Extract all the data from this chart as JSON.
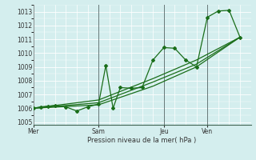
{
  "xlabel": "Pression niveau de la mer( hPa )",
  "bg_color": "#d4eeee",
  "line_color": "#1a6e1a",
  "grid_major_color": "#ffffff",
  "grid_minor_color": "#e8f8f8",
  "ylim": [
    1004.8,
    1013.5
  ],
  "yticks": [
    1005,
    1006,
    1007,
    1008,
    1009,
    1010,
    1011,
    1012,
    1013
  ],
  "day_labels": [
    "Mer",
    "Sam",
    "Jeu",
    "Ven"
  ],
  "day_positions": [
    0,
    36,
    72,
    96
  ],
  "xlim": [
    0,
    120
  ],
  "series1": [
    [
      0,
      1006.0
    ],
    [
      4,
      1006.1
    ],
    [
      8,
      1006.15
    ],
    [
      12,
      1006.2
    ],
    [
      18,
      1006.1
    ],
    [
      24,
      1005.8
    ],
    [
      30,
      1006.1
    ],
    [
      36,
      1006.3
    ],
    [
      40,
      1009.1
    ],
    [
      44,
      1006.0
    ],
    [
      48,
      1007.5
    ],
    [
      54,
      1007.45
    ],
    [
      60,
      1007.5
    ],
    [
      66,
      1009.5
    ],
    [
      72,
      1010.4
    ],
    [
      78,
      1010.35
    ],
    [
      84,
      1009.5
    ],
    [
      90,
      1009.0
    ],
    [
      96,
      1012.6
    ],
    [
      102,
      1013.05
    ],
    [
      108,
      1013.1
    ],
    [
      114,
      1011.15
    ]
  ],
  "series2": [
    [
      0,
      1006.0
    ],
    [
      36,
      1006.25
    ],
    [
      66,
      1007.6
    ],
    [
      90,
      1009.0
    ],
    [
      114,
      1011.15
    ]
  ],
  "series3": [
    [
      0,
      1006.0
    ],
    [
      36,
      1006.4
    ],
    [
      66,
      1007.9
    ],
    [
      90,
      1009.2
    ],
    [
      114,
      1011.15
    ]
  ],
  "series4": [
    [
      0,
      1006.0
    ],
    [
      36,
      1006.6
    ],
    [
      66,
      1008.15
    ],
    [
      90,
      1009.5
    ],
    [
      114,
      1011.15
    ]
  ],
  "vgrid_step": 6,
  "marker_size": 2.0,
  "line_width": 0.9
}
